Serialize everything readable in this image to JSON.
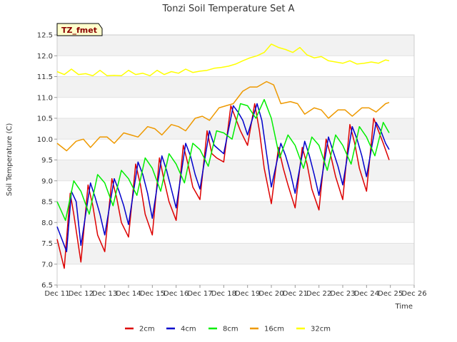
{
  "chart_data": {
    "type": "line",
    "title": "Tonzi Soil Temperature Set A",
    "xlabel": "Time",
    "ylabel": "Soil Temperature (C)",
    "badge": "TZ_fmet",
    "ylim": [
      6.5,
      12.5
    ],
    "xlim": [
      11,
      26
    ],
    "yticks": [
      6.5,
      7.0,
      7.5,
      8.0,
      8.5,
      9.0,
      9.5,
      10.0,
      10.5,
      11.0,
      11.5,
      12.0,
      12.5
    ],
    "xticks": [
      11,
      12,
      13,
      14,
      15,
      16,
      17,
      18,
      19,
      20,
      21,
      22,
      23,
      24,
      25,
      26
    ],
    "xtick_labels": [
      "Dec 11",
      "Dec 12",
      "Dec 13",
      "Dec 14",
      "Dec 15",
      "Dec 16",
      "Dec 17",
      "Dec 18",
      "Dec 19",
      "Dec 20",
      "Dec 21",
      "Dec 22",
      "Dec 23",
      "Dec 24",
      "Dec 25",
      "Dec 26"
    ],
    "grid": "horizontal bands",
    "legend_position": "bottom",
    "series": [
      {
        "name": "2cm",
        "color": "#dd0000",
        "x": [
          11.0,
          11.3,
          11.55,
          11.7,
          12.0,
          12.3,
          12.5,
          12.7,
          13.0,
          13.3,
          13.5,
          13.7,
          14.0,
          14.3,
          14.5,
          14.7,
          15.0,
          15.3,
          15.5,
          15.7,
          16.0,
          16.3,
          16.5,
          16.7,
          17.0,
          17.3,
          17.5,
          17.7,
          18.0,
          18.3,
          18.5,
          18.7,
          19.0,
          19.3,
          19.5,
          19.7,
          20.0,
          20.3,
          20.5,
          20.7,
          21.0,
          21.3,
          21.5,
          21.7,
          22.0,
          22.3,
          22.5,
          22.7,
          23.0,
          23.3,
          23.5,
          23.7,
          24.0,
          24.3,
          24.5,
          24.7,
          24.95
        ],
        "y": [
          7.6,
          6.9,
          8.7,
          8.2,
          7.05,
          8.9,
          8.4,
          7.7,
          7.3,
          9.05,
          8.6,
          8.0,
          7.65,
          9.4,
          8.9,
          8.2,
          7.7,
          9.55,
          9.0,
          8.5,
          8.05,
          9.85,
          9.4,
          8.85,
          8.55,
          10.2,
          9.65,
          9.55,
          9.45,
          10.8,
          10.5,
          10.2,
          9.85,
          10.85,
          10.2,
          9.3,
          8.45,
          9.8,
          9.3,
          8.9,
          8.35,
          9.8,
          9.4,
          8.8,
          8.3,
          10.0,
          9.6,
          9.1,
          8.55,
          10.35,
          9.9,
          9.3,
          8.75,
          10.5,
          10.2,
          9.9,
          9.5
        ]
      },
      {
        "name": "4cm",
        "color": "#0000cc",
        "x": [
          11.0,
          11.4,
          11.6,
          11.8,
          12.0,
          12.4,
          12.6,
          12.8,
          13.0,
          13.4,
          13.6,
          13.8,
          14.0,
          14.4,
          14.6,
          14.8,
          15.0,
          15.4,
          15.6,
          15.8,
          16.0,
          16.4,
          16.6,
          16.8,
          17.0,
          17.4,
          17.6,
          17.8,
          18.0,
          18.4,
          18.6,
          18.8,
          19.0,
          19.4,
          19.6,
          19.8,
          20.0,
          20.4,
          20.6,
          20.8,
          21.0,
          21.4,
          21.6,
          21.8,
          22.0,
          22.4,
          22.6,
          22.8,
          23.0,
          23.4,
          23.6,
          23.8,
          24.0,
          24.4,
          24.6,
          24.8,
          24.95
        ],
        "y": [
          7.9,
          7.3,
          8.75,
          8.5,
          7.45,
          8.95,
          8.6,
          8.2,
          7.7,
          9.05,
          8.75,
          8.4,
          7.95,
          9.45,
          9.15,
          8.7,
          8.1,
          9.6,
          9.25,
          8.8,
          8.35,
          9.9,
          9.6,
          9.15,
          8.8,
          10.2,
          9.85,
          9.75,
          9.65,
          10.8,
          10.65,
          10.45,
          10.1,
          10.85,
          10.45,
          9.65,
          8.85,
          9.9,
          9.6,
          9.2,
          8.7,
          9.95,
          9.6,
          9.15,
          8.65,
          10.05,
          9.7,
          9.35,
          8.9,
          10.3,
          10.0,
          9.6,
          9.1,
          10.4,
          10.2,
          9.9,
          9.75
        ]
      },
      {
        "name": "8cm",
        "color": "#00ee00",
        "x": [
          11.0,
          11.35,
          11.7,
          12.0,
          12.35,
          12.7,
          13.0,
          13.35,
          13.7,
          14.0,
          14.35,
          14.7,
          15.0,
          15.35,
          15.7,
          16.0,
          16.35,
          16.7,
          17.0,
          17.35,
          17.7,
          18.0,
          18.35,
          18.7,
          19.0,
          19.35,
          19.7,
          20.0,
          20.35,
          20.7,
          21.0,
          21.35,
          21.7,
          22.0,
          22.35,
          22.7,
          23.0,
          23.35,
          23.7,
          24.0,
          24.35,
          24.7,
          24.95
        ],
        "y": [
          8.5,
          8.05,
          9.0,
          8.75,
          8.2,
          9.15,
          8.95,
          8.4,
          9.25,
          9.05,
          8.65,
          9.55,
          9.3,
          8.75,
          9.65,
          9.4,
          8.95,
          9.9,
          9.75,
          9.35,
          10.2,
          10.15,
          10.0,
          10.85,
          10.8,
          10.5,
          10.95,
          10.5,
          9.55,
          10.1,
          9.85,
          9.3,
          10.05,
          9.85,
          9.25,
          10.1,
          9.85,
          9.4,
          10.3,
          10.05,
          9.6,
          10.4,
          10.15
        ]
      },
      {
        "name": "16cm",
        "color": "#ee9900",
        "x": [
          11.0,
          11.4,
          11.8,
          12.1,
          12.4,
          12.8,
          13.1,
          13.4,
          13.8,
          14.1,
          14.4,
          14.8,
          15.1,
          15.4,
          15.8,
          16.1,
          16.4,
          16.8,
          17.1,
          17.4,
          17.8,
          18.1,
          18.4,
          18.8,
          19.1,
          19.4,
          19.8,
          20.1,
          20.4,
          20.8,
          21.1,
          21.4,
          21.8,
          22.1,
          22.4,
          22.8,
          23.1,
          23.4,
          23.8,
          24.1,
          24.4,
          24.8,
          24.95
        ],
        "y": [
          9.9,
          9.72,
          9.95,
          10.0,
          9.8,
          10.05,
          10.05,
          9.9,
          10.15,
          10.1,
          10.05,
          10.3,
          10.25,
          10.1,
          10.35,
          10.3,
          10.2,
          10.5,
          10.55,
          10.45,
          10.75,
          10.8,
          10.85,
          11.15,
          11.25,
          11.25,
          11.38,
          11.3,
          10.85,
          10.9,
          10.85,
          10.6,
          10.75,
          10.7,
          10.5,
          10.7,
          10.7,
          10.55,
          10.75,
          10.75,
          10.65,
          10.85,
          10.88
        ]
      },
      {
        "name": "32cm",
        "color": "#ffff00",
        "x": [
          11.0,
          11.3,
          11.6,
          11.9,
          12.2,
          12.5,
          12.8,
          13.1,
          13.4,
          13.7,
          14.0,
          14.3,
          14.6,
          14.9,
          15.2,
          15.5,
          15.8,
          16.1,
          16.4,
          16.7,
          17.0,
          17.3,
          17.6,
          17.9,
          18.2,
          18.5,
          18.8,
          19.1,
          19.4,
          19.7,
          20.0,
          20.3,
          20.6,
          20.9,
          21.2,
          21.5,
          21.8,
          22.1,
          22.4,
          22.7,
          23.0,
          23.3,
          23.6,
          23.9,
          24.2,
          24.5,
          24.8,
          24.95
        ],
        "y": [
          11.62,
          11.55,
          11.68,
          11.55,
          11.57,
          11.52,
          11.65,
          11.52,
          11.53,
          11.52,
          11.65,
          11.55,
          11.58,
          11.52,
          11.65,
          11.55,
          11.62,
          11.58,
          11.68,
          11.6,
          11.63,
          11.65,
          11.7,
          11.72,
          11.75,
          11.8,
          11.88,
          11.95,
          12.0,
          12.08,
          12.28,
          12.2,
          12.15,
          12.08,
          12.2,
          12.02,
          11.95,
          11.98,
          11.88,
          11.85,
          11.82,
          11.88,
          11.8,
          11.82,
          11.85,
          11.82,
          11.9,
          11.88
        ]
      }
    ]
  }
}
